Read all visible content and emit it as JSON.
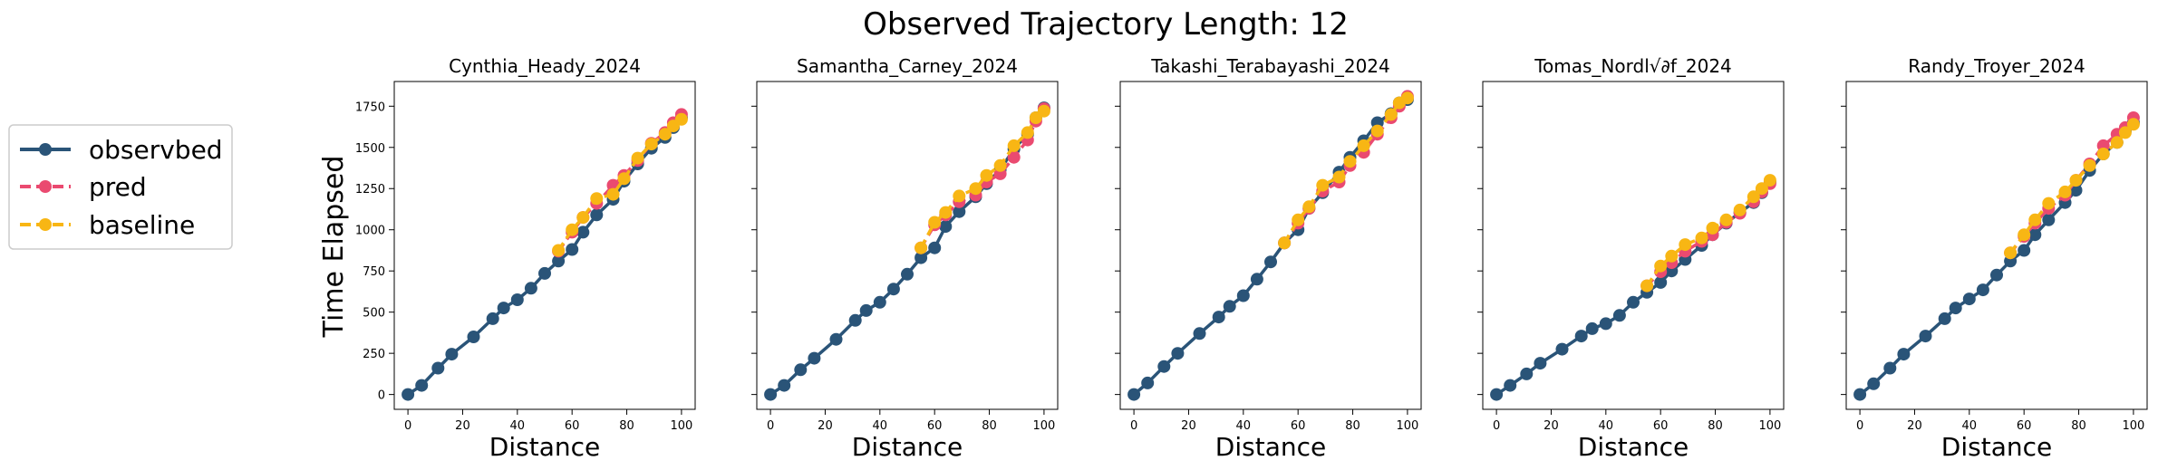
{
  "figure": {
    "suptitle": "Observed Trajectory Length: 12",
    "shared_ylabel": "Time Elapsed",
    "colors": {
      "observed": "#2a5478",
      "pred": "#ea4a70",
      "baseline": "#f8b614"
    }
  },
  "legend": {
    "entries": [
      {
        "label": "observbed",
        "color": "#2a5478",
        "style": "solid"
      },
      {
        "label": "pred",
        "color": "#ea4a70",
        "style": "dashed"
      },
      {
        "label": "baseline",
        "color": "#f8b614",
        "style": "dashed"
      }
    ]
  },
  "chart_data": [
    {
      "type": "line",
      "title": "Cynthia_Heady_2024",
      "xlabel": "Distance",
      "ylabel": "Time Elapsed",
      "xlim": [
        -5,
        105
      ],
      "ylim": [
        -90,
        1900
      ],
      "xticks": [
        0,
        20,
        40,
        60,
        80,
        100
      ],
      "yticks": [
        0,
        250,
        500,
        750,
        1000,
        1250,
        1500,
        1750
      ],
      "show_ytick_labels": true,
      "series": [
        {
          "name": "observbed",
          "x": [
            0,
            5,
            11,
            16,
            24,
            31,
            35,
            40,
            45,
            50,
            55,
            60,
            64,
            69,
            75,
            79,
            84,
            89,
            94,
            97,
            100
          ],
          "y": [
            0,
            55,
            160,
            245,
            350,
            460,
            525,
            575,
            645,
            735,
            810,
            880,
            985,
            1090,
            1185,
            1295,
            1400,
            1495,
            1560,
            1620,
            1680
          ]
        },
        {
          "name": "pred",
          "x": [
            55,
            60,
            64,
            69,
            75,
            79,
            84,
            89,
            94,
            97,
            100
          ],
          "y": [
            870,
            985,
            1075,
            1160,
            1270,
            1330,
            1420,
            1525,
            1590,
            1650,
            1700
          ]
        },
        {
          "name": "baseline",
          "x": [
            55,
            60,
            64,
            69,
            75,
            79,
            84,
            89,
            94,
            97,
            100
          ],
          "y": [
            875,
            1000,
            1075,
            1190,
            1215,
            1310,
            1435,
            1520,
            1580,
            1630,
            1670
          ]
        }
      ]
    },
    {
      "type": "line",
      "title": "Samantha_Carney_2024",
      "xlabel": "Distance",
      "ylabel": "",
      "xlim": [
        -5,
        105
      ],
      "ylim": [
        -90,
        1900
      ],
      "xticks": [
        0,
        20,
        40,
        60,
        80,
        100
      ],
      "yticks": [
        0,
        250,
        500,
        750,
        1000,
        1250,
        1500,
        1750
      ],
      "show_ytick_labels": false,
      "series": [
        {
          "name": "observbed",
          "x": [
            0,
            5,
            11,
            16,
            24,
            31,
            35,
            40,
            45,
            50,
            55,
            60,
            64,
            69,
            75,
            79,
            84,
            89,
            94,
            97,
            100
          ],
          "y": [
            0,
            55,
            150,
            220,
            335,
            450,
            510,
            560,
            640,
            730,
            830,
            890,
            1020,
            1110,
            1200,
            1280,
            1365,
            1490,
            1580,
            1680,
            1740
          ]
        },
        {
          "name": "pred",
          "x": [
            55,
            60,
            64,
            69,
            75,
            79,
            84,
            89,
            94,
            97,
            100
          ],
          "y": [
            890,
            1030,
            1090,
            1170,
            1210,
            1290,
            1340,
            1440,
            1545,
            1660,
            1735
          ]
        },
        {
          "name": "baseline",
          "x": [
            55,
            60,
            64,
            69,
            75,
            79,
            84,
            89,
            94,
            97,
            100
          ],
          "y": [
            890,
            1045,
            1105,
            1205,
            1250,
            1330,
            1390,
            1510,
            1590,
            1680,
            1720
          ]
        }
      ]
    },
    {
      "type": "line",
      "title": "Takashi_Terabayashi_2024",
      "xlabel": "Distance",
      "ylabel": "",
      "xlim": [
        -5,
        105
      ],
      "ylim": [
        -90,
        1900
      ],
      "xticks": [
        0,
        20,
        40,
        60,
        80,
        100
      ],
      "yticks": [
        0,
        250,
        500,
        750,
        1000,
        1250,
        1500,
        1750
      ],
      "show_ytick_labels": false,
      "series": [
        {
          "name": "observbed",
          "x": [
            0,
            5,
            11,
            16,
            24,
            31,
            35,
            40,
            45,
            50,
            55,
            60,
            64,
            69,
            75,
            79,
            84,
            89,
            94,
            97,
            100
          ],
          "y": [
            0,
            70,
            170,
            250,
            370,
            470,
            535,
            600,
            700,
            805,
            920,
            1000,
            1130,
            1225,
            1350,
            1440,
            1540,
            1650,
            1705,
            1770,
            1790
          ]
        },
        {
          "name": "pred",
          "x": [
            55,
            60,
            64,
            69,
            75,
            79,
            84,
            89,
            94,
            97,
            100
          ],
          "y": [
            920,
            1040,
            1130,
            1235,
            1290,
            1390,
            1470,
            1580,
            1680,
            1750,
            1810
          ]
        },
        {
          "name": "baseline",
          "x": [
            55,
            60,
            64,
            69,
            75,
            79,
            84,
            89,
            94,
            97,
            100
          ],
          "y": [
            920,
            1060,
            1140,
            1270,
            1320,
            1415,
            1510,
            1600,
            1700,
            1770,
            1800
          ]
        }
      ]
    },
    {
      "type": "line",
      "title": "Tomas_Nordl√∂f_2024",
      "xlabel": "Distance",
      "ylabel": "",
      "xlim": [
        -5,
        105
      ],
      "ylim": [
        -90,
        1900
      ],
      "xticks": [
        0,
        20,
        40,
        60,
        80,
        100
      ],
      "yticks": [
        0,
        250,
        500,
        750,
        1000,
        1250,
        1500,
        1750
      ],
      "show_ytick_labels": false,
      "series": [
        {
          "name": "observbed",
          "x": [
            0,
            5,
            11,
            16,
            24,
            31,
            35,
            40,
            45,
            50,
            55,
            60,
            64,
            69,
            75,
            79,
            84,
            89,
            94,
            97,
            100
          ],
          "y": [
            0,
            55,
            125,
            190,
            275,
            355,
            400,
            430,
            480,
            560,
            620,
            680,
            750,
            820,
            905,
            970,
            1040,
            1105,
            1165,
            1225,
            1290
          ]
        },
        {
          "name": "pred",
          "x": [
            55,
            60,
            64,
            69,
            75,
            79,
            84,
            89,
            94,
            97,
            100
          ],
          "y": [
            660,
            745,
            800,
            870,
            930,
            970,
            1045,
            1100,
            1170,
            1230,
            1280
          ]
        },
        {
          "name": "baseline",
          "x": [
            55,
            60,
            64,
            69,
            75,
            79,
            84,
            89,
            94,
            97,
            100
          ],
          "y": [
            660,
            780,
            840,
            910,
            950,
            1010,
            1060,
            1120,
            1200,
            1250,
            1300
          ]
        }
      ]
    },
    {
      "type": "line",
      "title": "Randy_Troyer_2024",
      "xlabel": "Distance",
      "ylabel": "",
      "xlim": [
        -5,
        105
      ],
      "ylim": [
        -90,
        1900
      ],
      "xticks": [
        0,
        20,
        40,
        60,
        80,
        100
      ],
      "yticks": [
        0,
        250,
        500,
        750,
        1000,
        1250,
        1500,
        1750
      ],
      "show_ytick_labels": false,
      "series": [
        {
          "name": "observbed",
          "x": [
            0,
            5,
            11,
            16,
            24,
            31,
            35,
            40,
            45,
            50,
            55,
            60,
            64,
            69,
            75,
            79,
            84,
            89,
            94,
            97,
            100
          ],
          "y": [
            0,
            65,
            160,
            245,
            355,
            460,
            525,
            580,
            635,
            725,
            810,
            875,
            970,
            1060,
            1165,
            1240,
            1360,
            1460,
            1530,
            1600,
            1650
          ]
        },
        {
          "name": "pred",
          "x": [
            55,
            60,
            64,
            69,
            75,
            79,
            84,
            89,
            94,
            97,
            100
          ],
          "y": [
            860,
            960,
            1040,
            1130,
            1210,
            1300,
            1400,
            1510,
            1580,
            1620,
            1680
          ]
        },
        {
          "name": "baseline",
          "x": [
            55,
            60,
            64,
            69,
            75,
            79,
            84,
            89,
            94,
            97,
            100
          ],
          "y": [
            860,
            970,
            1060,
            1160,
            1230,
            1300,
            1390,
            1460,
            1530,
            1590,
            1640
          ]
        }
      ]
    }
  ]
}
